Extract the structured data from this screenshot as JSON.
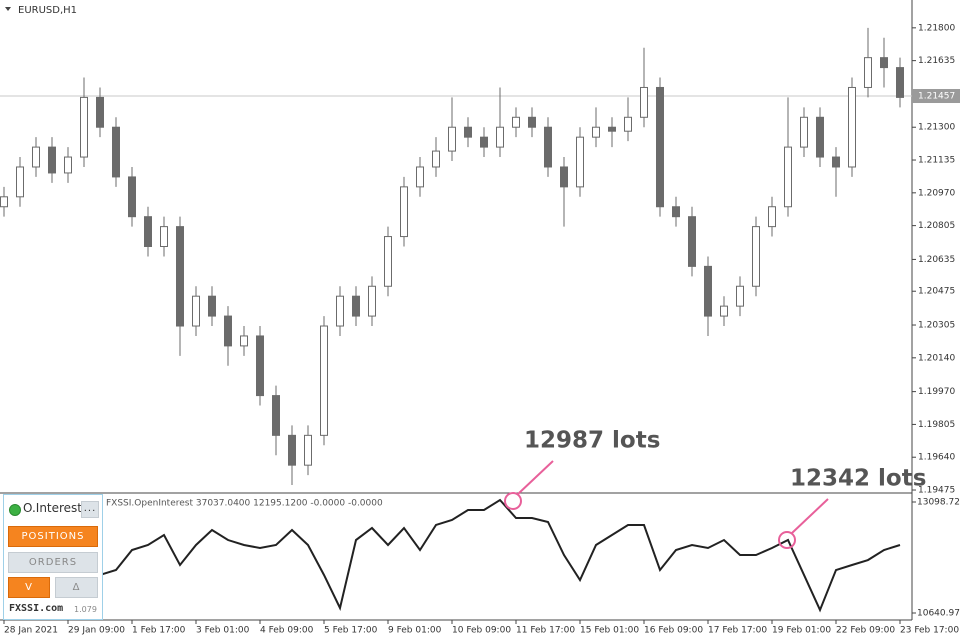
{
  "chart_data": [
    {
      "type": "candlestick",
      "title": "EURUSD,H1",
      "open": [
        1.209,
        1.2095,
        1.211,
        1.212,
        1.2107,
        1.2115,
        1.2145,
        1.213,
        1.2105,
        1.2085,
        1.207,
        1.208,
        1.203,
        1.2045,
        1.2035,
        1.202,
        1.2025,
        1.1995,
        1.1975,
        1.196,
        1.1975,
        1.203,
        1.2045,
        1.2035,
        1.205,
        1.2075,
        1.21,
        1.211,
        1.2118,
        1.213,
        1.2125,
        1.212,
        1.213,
        1.2135,
        1.213,
        1.211,
        1.21,
        1.2125,
        1.213,
        1.2128,
        1.2135,
        1.215,
        1.209,
        1.2085,
        1.206,
        1.2035,
        1.204,
        1.205,
        1.208,
        1.209,
        1.212,
        1.2135,
        1.2115,
        1.211,
        1.215,
        1.2165,
        1.216
      ],
      "high": [
        1.21,
        1.2115,
        1.2125,
        1.2125,
        1.212,
        1.2155,
        1.215,
        1.2135,
        1.211,
        1.209,
        1.2085,
        1.2085,
        1.205,
        1.205,
        1.204,
        1.203,
        1.203,
        1.2,
        1.198,
        1.198,
        1.2035,
        1.205,
        1.205,
        1.2055,
        1.208,
        1.2105,
        1.2115,
        1.2125,
        1.2145,
        1.2135,
        1.213,
        1.215,
        1.214,
        1.214,
        1.2135,
        1.2115,
        1.213,
        1.214,
        1.2135,
        1.2145,
        1.217,
        1.2155,
        1.2095,
        1.209,
        1.2065,
        1.2045,
        1.2055,
        1.2085,
        1.2095,
        1.2145,
        1.214,
        1.214,
        1.212,
        1.2155,
        1.218,
        1.2175,
        1.2165
      ],
      "low": [
        1.2085,
        1.209,
        1.2105,
        1.2102,
        1.2102,
        1.211,
        1.2125,
        1.21,
        1.208,
        1.2065,
        1.2065,
        1.2015,
        1.2025,
        1.203,
        1.201,
        1.2015,
        1.199,
        1.1965,
        1.195,
        1.1955,
        1.197,
        1.2025,
        1.203,
        1.203,
        1.2045,
        1.207,
        1.2095,
        1.2105,
        1.2113,
        1.212,
        1.2115,
        1.2115,
        1.2125,
        1.2125,
        1.2105,
        1.208,
        1.2095,
        1.212,
        1.212,
        1.2123,
        1.213,
        1.2085,
        1.208,
        1.2055,
        1.2025,
        1.203,
        1.2035,
        1.2045,
        1.2075,
        1.2085,
        1.2115,
        1.211,
        1.2095,
        1.2105,
        1.2145,
        1.215,
        1.214
      ],
      "close": [
        1.2095,
        1.211,
        1.212,
        1.2107,
        1.2115,
        1.2145,
        1.213,
        1.2105,
        1.2085,
        1.207,
        1.208,
        1.203,
        1.2045,
        1.2035,
        1.202,
        1.2025,
        1.1995,
        1.1975,
        1.196,
        1.1975,
        1.203,
        1.2045,
        1.2035,
        1.205,
        1.2075,
        1.21,
        1.211,
        1.2118,
        1.213,
        1.2125,
        1.212,
        1.213,
        1.2135,
        1.213,
        1.211,
        1.21,
        1.2125,
        1.213,
        1.2128,
        1.2135,
        1.215,
        1.209,
        1.2085,
        1.206,
        1.2035,
        1.204,
        1.205,
        1.208,
        1.209,
        1.212,
        1.2135,
        1.2115,
        1.211,
        1.215,
        1.2165,
        1.216,
        1.2145
      ],
      "up_color": "#ffffff",
      "down_color": "#6b6b6b",
      "color": "#6b6b6b",
      "ylim": [
        1.1946,
        1.2194
      ],
      "yticks": [
        {
          "value": 1.218,
          "label": "1.21800"
        },
        {
          "value": 1.21635,
          "label": "1.21635"
        },
        {
          "value": 1.213,
          "label": "1.21300"
        },
        {
          "value": 1.21135,
          "label": "1.21135"
        },
        {
          "value": 1.2097,
          "label": "1.20970"
        },
        {
          "value": 1.20805,
          "label": "1.20805"
        },
        {
          "value": 1.20635,
          "label": "1.20635"
        },
        {
          "value": 1.20475,
          "label": "1.20475"
        },
        {
          "value": 1.20305,
          "label": "1.20305"
        },
        {
          "value": 1.2014,
          "label": "1.20140"
        },
        {
          "value": 1.1997,
          "label": "1.19970"
        },
        {
          "value": 1.19805,
          "label": "1.19805"
        },
        {
          "value": 1.1964,
          "label": "1.19640"
        },
        {
          "value": 1.19475,
          "label": "1.19475"
        }
      ],
      "last_price": {
        "value": 1.21457,
        "label": "1.21457"
      },
      "xlim": [
        -0.25,
        56.75
      ],
      "xticks": [
        {
          "value": 0,
          "label": "28 Jan 2021"
        },
        {
          "value": 4,
          "label": "29 Jan 09:00"
        },
        {
          "value": 8,
          "label": "1 Feb 17:00"
        },
        {
          "value": 12,
          "label": "3 Feb 01:00"
        },
        {
          "value": 16,
          "label": "4 Feb 09:00"
        },
        {
          "value": 20,
          "label": "5 Feb 17:00"
        },
        {
          "value": 24,
          "label": "9 Feb 01:00"
        },
        {
          "value": 28,
          "label": "10 Feb 09:00"
        },
        {
          "value": 32,
          "label": "11 Feb 17:00"
        },
        {
          "value": 36,
          "label": "15 Feb 01:00"
        },
        {
          "value": 40,
          "label": "16 Feb 09:00"
        },
        {
          "value": 44,
          "label": "17 Feb 17:00"
        },
        {
          "value": 48,
          "label": "19 Feb 01:00"
        },
        {
          "value": 52,
          "label": "22 Feb 09:00"
        },
        {
          "value": 56,
          "label": "23 Feb 17:00"
        }
      ]
    },
    {
      "type": "line",
      "title": "FXSSI.OpenInterest 37037.0400 12195.1200 -0.0000 -0.0000",
      "color": "#222222",
      "values": [
        null,
        null,
        null,
        null,
        null,
        null,
        11483,
        11593,
        12036,
        12147,
        12368,
        11704,
        12147,
        12479,
        12257,
        12147,
        12080,
        12147,
        12479,
        12147,
        11483,
        10752,
        12257,
        12523,
        12147,
        12523,
        12036,
        12590,
        12700,
        12922,
        12922,
        13143,
        12745,
        12745,
        12656,
        11925,
        11372,
        12147,
        12368,
        12590,
        12590,
        11593,
        12036,
        12147,
        12080,
        12257,
        11925,
        11925,
        12080,
        12257,
        11483,
        10708,
        11593,
        11704,
        11814,
        12036,
        12147
      ],
      "ylim": [
        10486,
        13276
      ],
      "yticks": [
        10640.974,
        13098.726
      ],
      "annotations": [
        "12987 lots",
        "12342 lots"
      ]
    }
  ],
  "panel": {
    "title": "O.Interest",
    "menu": "...",
    "positions": "POSITIONS",
    "orders": "ORDERS",
    "volume": "V",
    "delta": "Δ",
    "brand": "FXSSI.com",
    "version": "1.079"
  }
}
